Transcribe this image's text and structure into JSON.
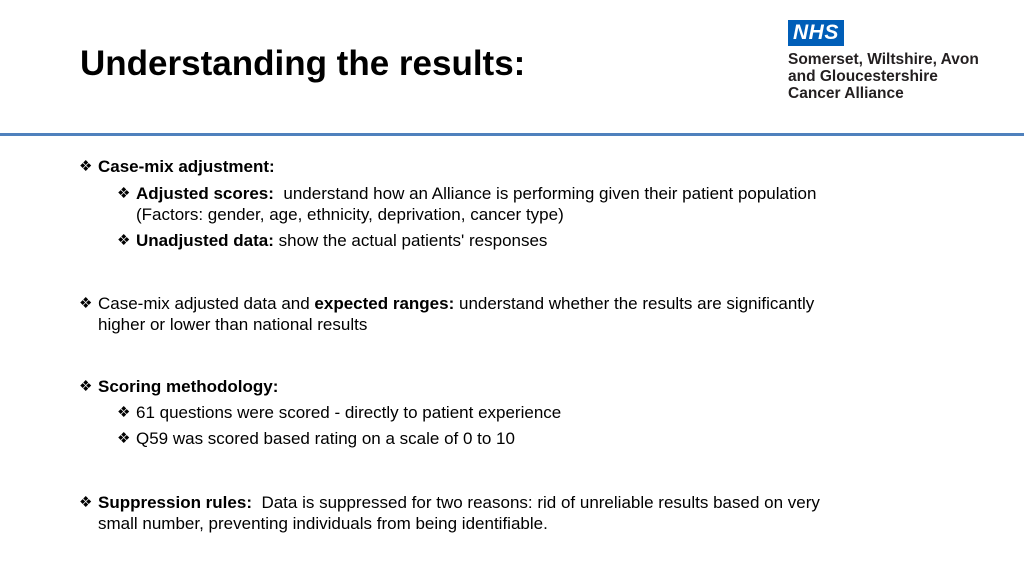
{
  "title": "Understanding the results:",
  "logo": {
    "nhs": "NHS",
    "lines": [
      "Somerset, Wiltshire, Avon",
      "and Gloucestershire",
      "Cancer Alliance"
    ]
  },
  "bullet": "❖",
  "casemix": {
    "heading": "Case-mix adjustment:",
    "adjusted_label": "Adjusted scores:",
    "adjusted_text": "understand how an Alliance is performing given their patient population",
    "adjusted_factors": "(Factors: gender, age, ethnicity, deprivation, cancer type)",
    "unadjusted_label": "Unadjusted data:",
    "unadjusted_text": "show the actual patients' responses"
  },
  "ranges": {
    "prefix": "Case-mix adjusted data and ",
    "label": "expected ranges:",
    "line1": "understand whether the results are significantly",
    "line2": "higher or lower than national results"
  },
  "scoring": {
    "heading": "Scoring methodology:",
    "item1": "61 questions were scored - directly to patient experience",
    "item2": "Q59 was scored based rating on a scale of 0 to 10"
  },
  "suppression": {
    "label": "Suppression rules:",
    "line1": "Data is suppressed for two reasons: rid of unreliable results based on very",
    "line2": "small number, preventing individuals from being identifiable."
  }
}
